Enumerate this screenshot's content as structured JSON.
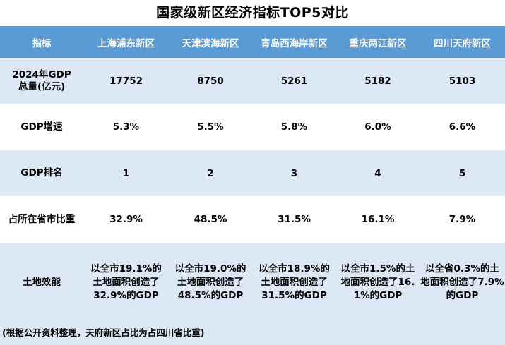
{
  "title": "国家级新区经济指标TOP5对比",
  "header": {
    "label_col": "指标",
    "columns": [
      "上海浦东新区",
      "天津滨海新区",
      "青岛西海岸新区",
      "重庆两江新区",
      "四川天府新区"
    ]
  },
  "rows": [
    {
      "label_line1": "2024年GDP",
      "label_line2": "总量(亿元)",
      "values": [
        "17752",
        "8750",
        "5261",
        "5182",
        "5103"
      ]
    },
    {
      "label": "GDP增速",
      "values": [
        "5.3%",
        "5.5%",
        "5.8%",
        "6.0%",
        "6.6%"
      ]
    },
    {
      "label": "GDP排名",
      "values": [
        "1",
        "2",
        "3",
        "4",
        "5"
      ]
    },
    {
      "label": "占所在省市比重",
      "values": [
        "32.9%",
        "48.5%",
        "31.5%",
        "16.1%",
        "7.9%"
      ]
    },
    {
      "label": "土地效能",
      "values": [
        [
          "以全市19.1%的",
          "土地面积创造了",
          "32.9%的GDP"
        ],
        [
          "以全市19.0%的",
          "土地面积创造了",
          "48.5%的GDP"
        ],
        [
          "以全市18.9%的",
          "土地面积创造了",
          "31.5%的GDP"
        ],
        [
          "以全市1.5%的土",
          "地面积创造了16.",
          "1%的GDP"
        ],
        [
          "以全省0.3%的土",
          "地面积创造了7.9%",
          "的GDP"
        ]
      ]
    }
  ],
  "note": "(根据公开资料整理，天府新区占比为占四川省比重)",
  "colors": {
    "header_bg": "#5b9bd5",
    "band_bg": "#dce8f5",
    "header_text": "#ffffff"
  }
}
